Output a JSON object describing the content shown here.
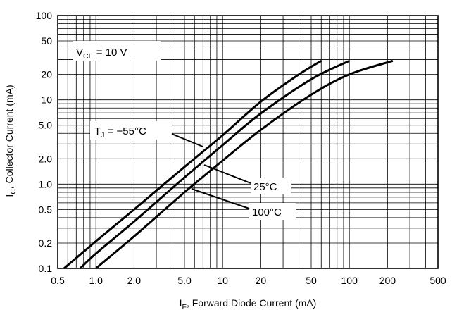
{
  "chart_data": {
    "type": "line",
    "xscale": "log",
    "yscale": "log",
    "xlim": [
      0.5,
      500
    ],
    "ylim": [
      0.1,
      100
    ],
    "grid": true,
    "xticks": [
      "0.5",
      "1.0",
      "2.0",
      "5.0",
      "10",
      "20",
      "50",
      "100",
      "200",
      "500"
    ],
    "yticks": [
      "100",
      "50",
      "20",
      "10",
      "5.0",
      "2.0",
      "1.0",
      "0.5",
      "0.2",
      "0.1"
    ],
    "xlabel": {
      "main": "I",
      "sub": "F",
      "rest": ", Forward Diode Current (mA)"
    },
    "ylabel": {
      "main": "I",
      "sub": "C",
      "rest": ", Collector Current (mA)"
    },
    "condition": {
      "main": "V",
      "sub": "CE",
      "rest": " = 10 V"
    },
    "series": [
      {
        "name": "T_J = −55°C",
        "x": [
          0.56,
          1.0,
          2.0,
          5.0,
          10,
          20,
          40,
          60
        ],
        "y": [
          0.1,
          0.21,
          0.5,
          1.6,
          3.8,
          9.5,
          20,
          29
        ]
      },
      {
        "name": "25°C",
        "x": [
          0.75,
          1.0,
          2.0,
          5.0,
          10,
          20,
          50,
          100
        ],
        "y": [
          0.1,
          0.15,
          0.36,
          1.2,
          2.9,
          6.9,
          17.5,
          29
        ]
      },
      {
        "name": "100°C",
        "x": [
          1.0,
          2.0,
          5.0,
          10,
          20,
          50,
          100,
          220
        ],
        "y": [
          0.1,
          0.24,
          0.8,
          1.9,
          4.4,
          11.5,
          20,
          29
        ]
      }
    ],
    "annotations": [
      {
        "main": "T",
        "sub": "J",
        "rest": " = −55°C"
      },
      {
        "text": "25°C"
      },
      {
        "text": "100°C"
      }
    ]
  }
}
